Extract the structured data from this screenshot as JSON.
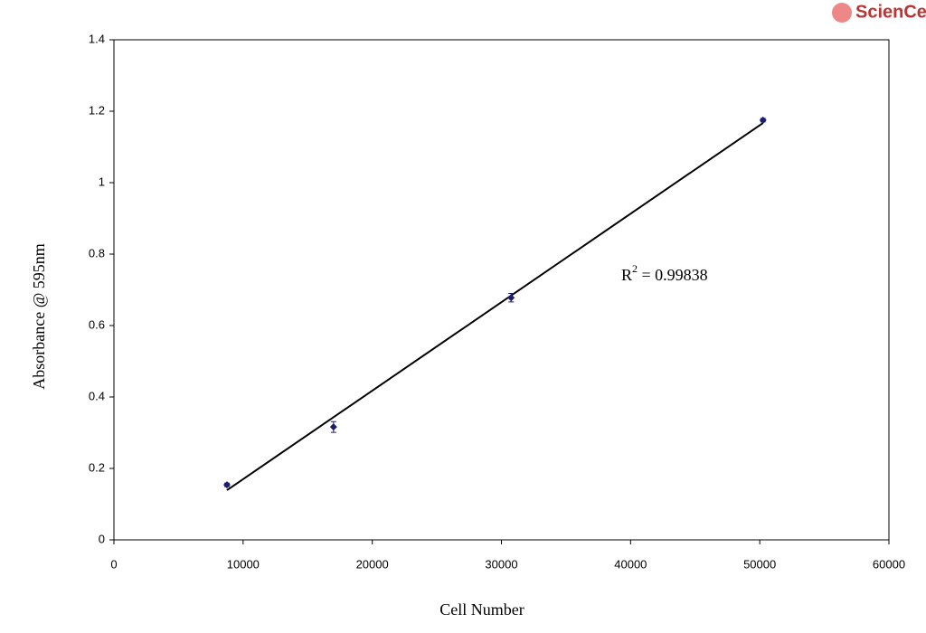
{
  "logo": "ScienCell",
  "chart_data": {
    "type": "scatter",
    "xlabel": "Cell Number",
    "ylabel": "Absorbance @ 595nm",
    "x": [
      8750,
      17000,
      30750,
      50250
    ],
    "series": [
      {
        "color": "#1c1c6e",
        "values": [
          0.154,
          0.316,
          0.678,
          1.175
        ],
        "errors": [
          0.005,
          0.015,
          0.012,
          0.005
        ]
      }
    ],
    "trendline": {
      "x": [
        8750,
        50250
      ],
      "y": [
        0.139,
        1.167
      ],
      "color": "#000000"
    },
    "annotation": [
      "R",
      "2",
      " = 0.99838"
    ],
    "xlim": [
      0,
      60000
    ],
    "xticks": [
      0,
      10000,
      20000,
      30000,
      40000,
      50000,
      60000
    ],
    "ylim": [
      0,
      1.4
    ],
    "yticks": [
      0,
      0.2,
      0.4,
      0.6,
      0.8,
      1,
      1.2,
      1.4
    ],
    "grid": false
  }
}
